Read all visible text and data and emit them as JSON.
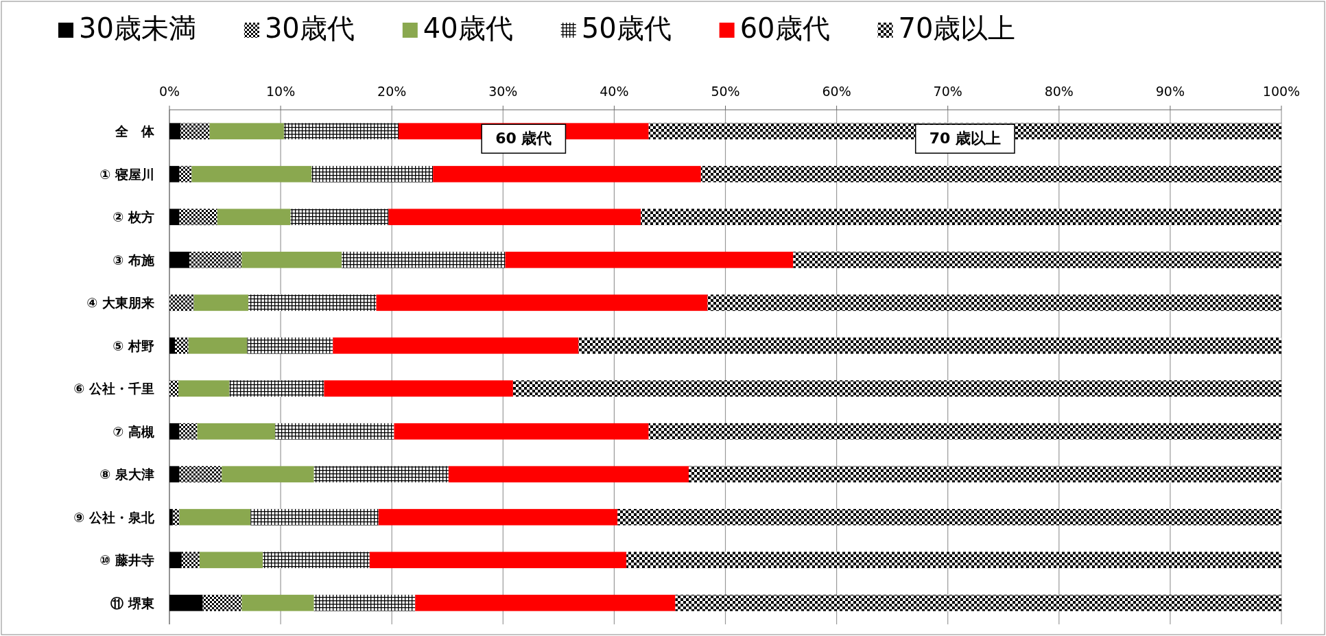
{
  "chart_data": {
    "type": "bar",
    "orientation": "horizontal",
    "stacked": true,
    "categories": [
      "全　体",
      "① 寝屋川",
      "② 枚方",
      "③ 布施",
      "④ 大東朋来",
      "⑤ 村野",
      "⑥ 公社・千里",
      "⑦ 高槻",
      "⑧ 泉大津",
      "⑨ 公社・泉北",
      "⑩ 藤井寺",
      "⑪ 堺東"
    ],
    "series": [
      {
        "name": "30歳未満",
        "color": "#000000",
        "values": [
          1.0,
          0.9,
          0.9,
          1.8,
          0,
          0.5,
          0,
          0.9,
          0.9,
          0.3,
          1.1,
          3.0
        ]
      },
      {
        "name": "30歳代",
        "color": "#000000",
        "values": [
          2.6,
          1.1,
          3.4,
          4.7,
          2.2,
          1.2,
          0.8,
          1.6,
          3.8,
          0.6,
          1.6,
          3.5
        ]
      },
      {
        "name": "40歳代",
        "color": "#8aa84f",
        "values": [
          6.7,
          10.8,
          6.6,
          9.0,
          4.9,
          5.3,
          4.6,
          7.0,
          8.3,
          6.4,
          5.7,
          6.5
        ]
      },
      {
        "name": "50歳代",
        "color": "#000000",
        "values": [
          10.3,
          10.9,
          8.8,
          14.7,
          11.5,
          7.7,
          8.5,
          10.7,
          12.1,
          11.5,
          9.6,
          9.1
        ]
      },
      {
        "name": "60歳代",
        "color": "#ff0000",
        "values": [
          22.5,
          24.1,
          22.7,
          25.9,
          29.8,
          22.1,
          17.0,
          22.9,
          21.6,
          21.5,
          23.1,
          23.4
        ]
      },
      {
        "name": "70歳以上",
        "color": "#000000",
        "values": [
          56.9,
          52.2,
          57.6,
          43.9,
          51.6,
          63.2,
          69.1,
          56.9,
          53.3,
          59.7,
          58.9,
          54.5
        ]
      }
    ],
    "xlim": [
      0,
      100
    ],
    "xticks": [
      {
        "value": 0,
        "label": "0%"
      },
      {
        "value": 10,
        "label": "10%"
      },
      {
        "value": 20,
        "label": "20%"
      },
      {
        "value": 30,
        "label": "30%"
      },
      {
        "value": 40,
        "label": "40%"
      },
      {
        "value": 50,
        "label": "50%"
      },
      {
        "value": 60,
        "label": "60%"
      },
      {
        "value": 70,
        "label": "70%"
      },
      {
        "value": 80,
        "label": "80%"
      },
      {
        "value": 90,
        "label": "90%"
      },
      {
        "value": 100,
        "label": "100%"
      }
    ],
    "grid": "x",
    "legend": "top",
    "annotations": [
      "60 歳代",
      "70 歳以上"
    ]
  }
}
